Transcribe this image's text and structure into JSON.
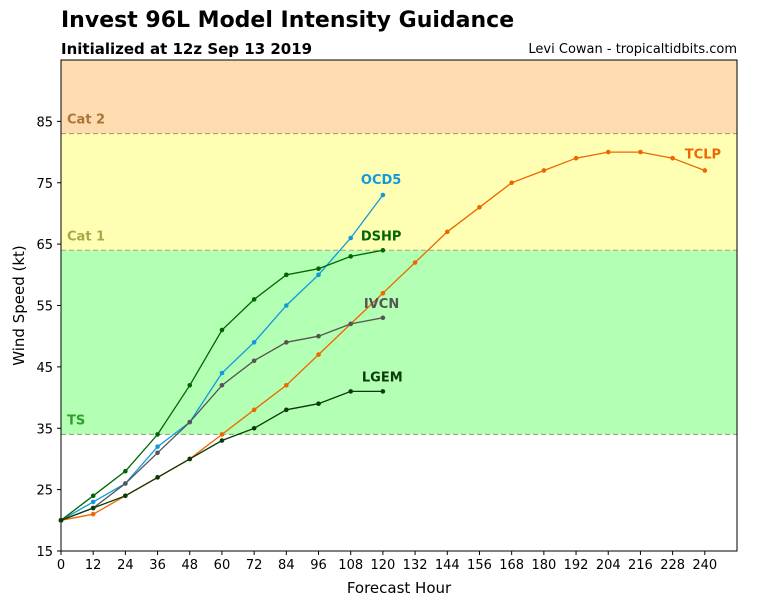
{
  "header": {
    "title": "Invest 96L Model Intensity Guidance",
    "subtitle": "Initialized at 12z Sep 13 2019",
    "credit": "Levi Cowan - tropicaltidbits.com"
  },
  "chart_data": {
    "type": "line",
    "xlabel": "Forecast Hour",
    "ylabel": "Wind Speed (kt)",
    "xlim": [
      0,
      252
    ],
    "ylim": [
      15,
      95
    ],
    "xticks": [
      0,
      12,
      24,
      36,
      48,
      60,
      72,
      84,
      96,
      108,
      120,
      132,
      144,
      156,
      168,
      180,
      192,
      204,
      216,
      228,
      240
    ],
    "yticks": [
      15,
      25,
      35,
      45,
      55,
      65,
      75,
      85
    ],
    "grid": false,
    "bands": [
      {
        "label": "",
        "from": 15,
        "to": 34,
        "color": "#ffffff"
      },
      {
        "label": "TS",
        "from": 34,
        "to": 64,
        "color": "#b3ffb3",
        "label_color": "#2e9e2e",
        "line_color": "#8a9f7a"
      },
      {
        "label": "Cat 1",
        "from": 64,
        "to": 83,
        "color": "#ffffb3",
        "label_color": "#a8a84a",
        "line_color": "#a8a87a"
      },
      {
        "label": "Cat 2",
        "from": 83,
        "to": 95,
        "color": "#ffdcb0",
        "label_color": "#a8763a",
        "line_color": "#a8906a"
      }
    ],
    "series": [
      {
        "name": "TCLP",
        "color": "#ee6600",
        "x": [
          0,
          12,
          24,
          36,
          48,
          60,
          72,
          84,
          96,
          108,
          120,
          132,
          144,
          156,
          168,
          180,
          192,
          204,
          216,
          228,
          240
        ],
        "y": [
          20,
          21,
          24,
          27,
          30,
          34,
          38,
          42,
          47,
          52,
          57,
          62,
          67,
          71,
          75,
          77,
          79,
          80,
          80,
          79,
          77
        ]
      },
      {
        "name": "OCD5",
        "color": "#1199dd",
        "x": [
          0,
          12,
          24,
          36,
          48,
          60,
          72,
          84,
          96,
          108,
          120
        ],
        "y": [
          20,
          23,
          26,
          32,
          36,
          44,
          49,
          55,
          60,
          66,
          73
        ]
      },
      {
        "name": "DSHP",
        "color": "#006600",
        "x": [
          0,
          12,
          24,
          36,
          48,
          60,
          72,
          84,
          96,
          108,
          120
        ],
        "y": [
          20,
          24,
          28,
          34,
          42,
          51,
          56,
          60,
          61,
          63,
          64
        ]
      },
      {
        "name": "IVCN",
        "color": "#555555",
        "x": [
          0,
          12,
          24,
          36,
          48,
          60,
          72,
          84,
          96,
          108,
          120
        ],
        "y": [
          20,
          22,
          26,
          31,
          36,
          42,
          46,
          49,
          50,
          52,
          53
        ]
      },
      {
        "name": "LGEM",
        "color": "#0a3a0a",
        "x": [
          0,
          12,
          24,
          36,
          48,
          60,
          72,
          84,
          96,
          108,
          120
        ],
        "y": [
          20,
          22,
          24,
          27,
          30,
          33,
          35,
          38,
          39,
          41,
          41
        ]
      }
    ]
  }
}
